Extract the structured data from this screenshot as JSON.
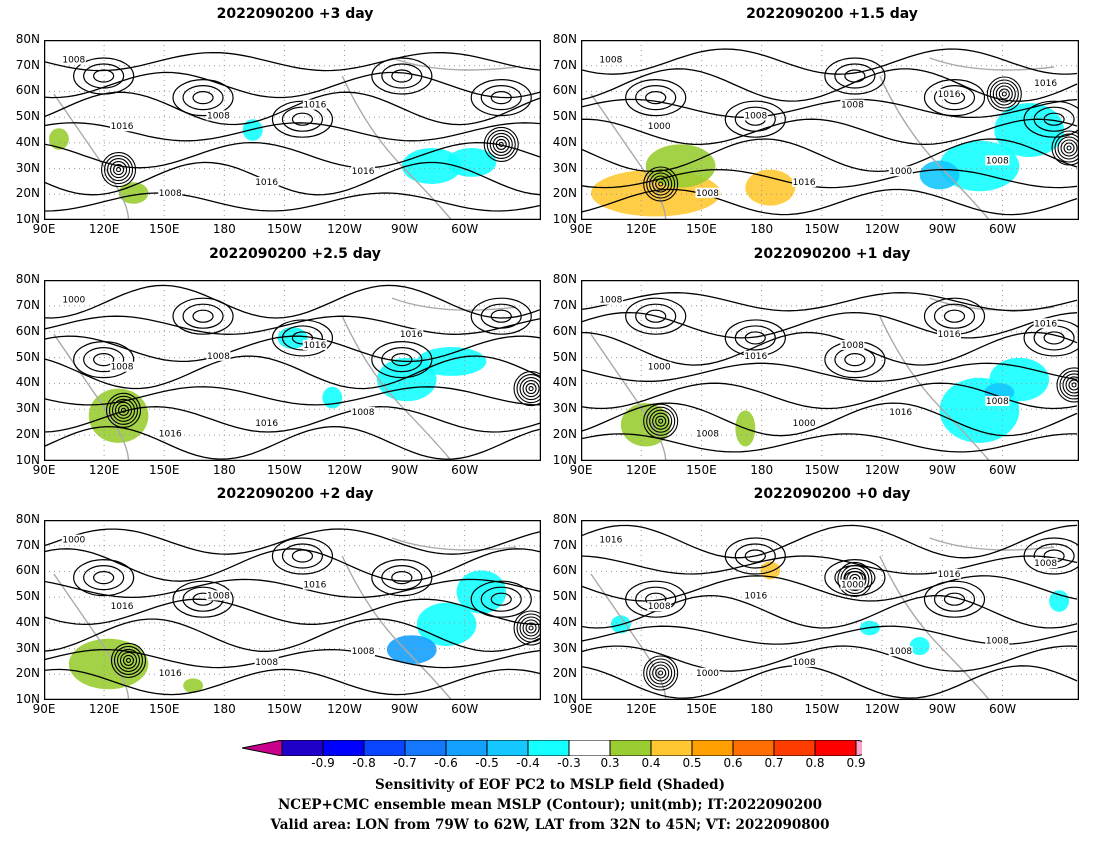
{
  "panels": [
    {
      "title": "2022090200 +3 day"
    },
    {
      "title": "2022090200 +1.5 day"
    },
    {
      "title": "2022090200 +2.5 day"
    },
    {
      "title": "2022090200 +1 day"
    },
    {
      "title": "2022090200 +2 day"
    },
    {
      "title": "2022090200 +0 day"
    }
  ],
  "axes": {
    "lat_labels": [
      "80N",
      "70N",
      "60N",
      "50N",
      "40N",
      "30N",
      "20N",
      "10N"
    ],
    "lon_labels": [
      "90E",
      "120E",
      "150E",
      "180",
      "150W",
      "120W",
      "90W",
      "60W"
    ]
  },
  "colorbar": {
    "labels": [
      "-0.9",
      "-0.8",
      "-0.7",
      "-0.6",
      "-0.5",
      "-0.4",
      "-0.3",
      "0.3",
      "0.4",
      "0.5",
      "0.6",
      "0.7",
      "0.8",
      "0.9"
    ],
    "colors": [
      "#1e00c8",
      "#0000ff",
      "#0a46ff",
      "#1478ff",
      "#14a0ff",
      "#14c8ff",
      "#14ffff",
      "#ffffff",
      "#9acd32",
      "#ffc832",
      "#ffa000",
      "#ff6e00",
      "#ff3c00",
      "#ff0000"
    ],
    "end_low": "#c8008c",
    "end_high": "#ffa0c8"
  },
  "contour_labels": {
    "p0": [
      "1008",
      "1016",
      "1008",
      "1008",
      "1016",
      "1016",
      "1016"
    ],
    "p1": [
      "1008",
      "1000",
      "1008",
      "1008",
      "1016",
      "1008",
      "1000",
      "1016",
      "1008",
      "1016"
    ],
    "p2": [
      "1000",
      "1008",
      "1016",
      "1008",
      "1016",
      "1016",
      "1008",
      "1016"
    ],
    "p3": [
      "1008",
      "1000",
      "1008",
      "1016",
      "1000",
      "1008",
      "1016",
      "1016",
      "1008",
      "1016"
    ],
    "p4": [
      "1000",
      "1016",
      "1016",
      "1008",
      "1008",
      "1016",
      "1008"
    ],
    "p5": [
      "1016",
      "1008",
      "1000",
      "1016",
      "1008",
      "1000",
      "1008",
      "1016",
      "1008",
      "1008"
    ]
  },
  "caption": {
    "line1": "Sensitivity of EOF PC2 to MSLP field (Shaded)",
    "line2": "NCEP+CMC ensemble mean MSLP (Contour); unit(mb); IT:2022090200",
    "line3": "Valid area: LON from 79W to 62W, LAT from 32N to 45N; VT: 2022090800"
  }
}
